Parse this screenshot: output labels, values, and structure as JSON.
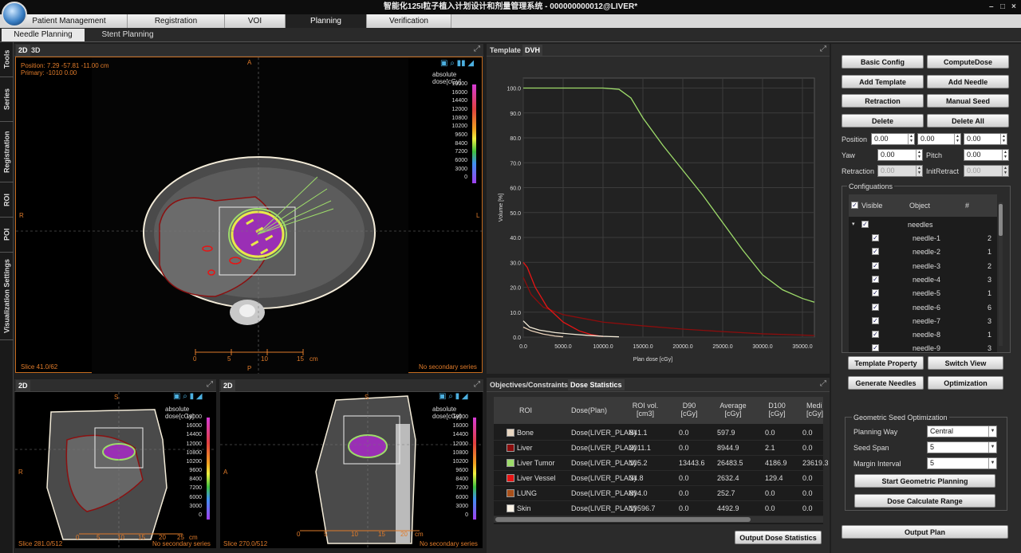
{
  "title": "智能化125I粒子植入计划设计和剂量管理系统 - 000000000012@LIVER*",
  "window_controls": [
    "–",
    "□",
    "×"
  ],
  "main_tabs": [
    "Patient Management",
    "Registration",
    "VOI",
    "Planning",
    "Verification"
  ],
  "sub_tabs": [
    "Needle Planning",
    "Stent Planning"
  ],
  "side_tabs": [
    "Tools",
    "Series",
    "Registration",
    "ROI",
    "POI",
    "Visualization Settings"
  ],
  "viewer_main": {
    "tabs": [
      "2D",
      "3D"
    ],
    "position": "Position: 7.29 -57.81 -11.00 cm",
    "primary": "Primary: -1010  0.00",
    "dose_label": "absolute dose[cGy]",
    "orient_top": "A",
    "orient_bottom": "P",
    "orient_left": "R",
    "orient_right": "L",
    "slice": "Slice 41.0/62",
    "secondary": "No secondary series",
    "ruler_ticks": [
      "0",
      "5",
      "10",
      "15"
    ],
    "ruler_unit": "cm"
  },
  "colorbar_values": [
    "18000",
    "16000",
    "14400",
    "12000",
    "10800",
    "10200",
    "9600",
    "8400",
    "7200",
    "6000",
    "3000",
    "0"
  ],
  "viewer_coronal": {
    "tab": "2D",
    "dose_label": "absolute dose[cGy]",
    "orient_top": "S",
    "orient_left": "R",
    "slice": "Slice 281.0/512",
    "secondary": "No secondary series",
    "ruler_ticks": [
      "0",
      "5",
      "10",
      "15",
      "20",
      "25"
    ],
    "ruler_unit": "cm"
  },
  "viewer_sagittal": {
    "tab": "2D",
    "dose_label": "absolute dose[cGy]",
    "orient_top": "S",
    "orient_left": "A",
    "slice": "Slice 270.0/512",
    "secondary": "No secondary series",
    "ruler_ticks": [
      "0",
      "5",
      "10",
      "15",
      "20"
    ],
    "ruler_unit": "cm"
  },
  "dvh_tabs": [
    "Template",
    "DVH"
  ],
  "chart_data": {
    "type": "line",
    "title": "",
    "xlabel": "Plan dose [cGy]",
    "ylabel": "Volume [%]",
    "xlim": [
      0,
      36500
    ],
    "ylim": [
      0,
      104
    ],
    "xticks": [
      "0.0",
      "5000.0",
      "10000.0",
      "15000.0",
      "20000.0",
      "25000.0",
      "30000.0",
      "35000.0"
    ],
    "yticks": [
      "0.0",
      "10.0",
      "20.0",
      "30.0",
      "40.0",
      "50.0",
      "60.0",
      "70.0",
      "80.0",
      "90.0",
      "100.0"
    ],
    "grid": true,
    "series": [
      {
        "name": "Liver Tumor",
        "color": "#9edc6a",
        "x": [
          0,
          5000,
          10000,
          12000,
          13500,
          15000,
          17500,
          20000,
          22500,
          25000,
          27500,
          30000,
          32500,
          35000,
          36500
        ],
        "y": [
          100,
          100,
          100,
          99.5,
          96,
          88,
          77,
          67,
          57,
          46,
          35,
          25,
          19,
          15.5,
          14
        ]
      },
      {
        "name": "Liver",
        "color": "#8b0d0d",
        "x": [
          0,
          1000,
          2500,
          5000,
          7500,
          10000,
          15000,
          20000,
          25000,
          30000,
          35000,
          36500
        ],
        "y": [
          24,
          17,
          12,
          9,
          7.5,
          6,
          4.5,
          3.2,
          2.2,
          1.3,
          0.8,
          0.6
        ]
      },
      {
        "name": "Liver Vessel",
        "color": "#e81414",
        "x": [
          0,
          500,
          1500,
          3000,
          5000,
          7000,
          8500,
          10000
        ],
        "y": [
          30,
          28,
          20,
          12,
          6,
          2.5,
          1,
          0.2
        ]
      },
      {
        "name": "Skin",
        "color": "#f3ebd8",
        "x": [
          0,
          800,
          2000,
          4000,
          6000,
          8000,
          10000,
          12000
        ],
        "y": [
          6.5,
          4,
          2.8,
          1.8,
          1.2,
          0.7,
          0.3,
          0.1
        ]
      },
      {
        "name": "Bone",
        "color": "#e8d0b8",
        "x": [
          0,
          1000,
          2500,
          4000,
          5000
        ],
        "y": [
          4,
          2.5,
          1.2,
          0.4,
          0.1
        ]
      }
    ]
  },
  "stats_tabs": [
    "Objectives/Constraints",
    "Dose Statistics"
  ],
  "stats_headers": [
    "ROI",
    "Dose(Plan)",
    "ROI vol. [cm3]",
    "D90 [cGy]",
    "Average [cGy]",
    "D100 [cGy]",
    "Medi [cGy]"
  ],
  "stats_rows": [
    {
      "color": "#e8d6c0",
      "roi": "Bone",
      "dose": "Dose(LIVER_PLAN)",
      "vol": "841.1",
      "d90": "0.0",
      "avg": "597.9",
      "d100": "0.0",
      "med": "0.0"
    },
    {
      "color": "#8b0d0d",
      "roi": "Liver",
      "dose": "Dose(LIVER_PLAN)",
      "vol": "2011.1",
      "d90": "0.0",
      "avg": "8944.9",
      "d100": "2.1",
      "med": "0.0"
    },
    {
      "color": "#9edc6a",
      "roi": "Liver Tumor",
      "dose": "Dose(LIVER_PLAN)",
      "vol": "105.2",
      "d90": "13443.6",
      "avg": "26483.5",
      "d100": "4186.9",
      "med": "23619.3"
    },
    {
      "color": "#e81414",
      "roi": "Liver Vessel",
      "dose": "Dose(LIVER_PLAN)",
      "vol": "34.8",
      "d90": "0.0",
      "avg": "2632.4",
      "d100": "129.4",
      "med": "0.0"
    },
    {
      "color": "#a9501a",
      "roi": "LUNG",
      "dose": "Dose(LIVER_PLAN)",
      "vol": "894.0",
      "d90": "0.0",
      "avg": "252.7",
      "d100": "0.0",
      "med": "0.0"
    },
    {
      "color": "#fbf3e6",
      "roi": "Skin",
      "dose": "Dose(LIVER_PLAN)",
      "vol": "19596.7",
      "d90": "0.0",
      "avg": "4492.9",
      "d100": "0.0",
      "med": "0.0"
    }
  ],
  "output_dose_stats": "Output Dose Statistics",
  "right": {
    "buttons": [
      "Basic Config",
      "ComputeDose",
      "Add Template",
      "Add Needle",
      "Retraction",
      "Manual Seed",
      "Delete",
      "Delete All"
    ],
    "position_label": "Position",
    "position_vals": [
      "0.00",
      "0.00",
      "0.00"
    ],
    "yaw_label": "Yaw",
    "yaw_val": "0.00",
    "pitch_label": "Pitch",
    "pitch_val": "0.00",
    "retraction_label": "Retraction",
    "retraction_val": "0.00",
    "initretract_label": "InitRetract",
    "initretract_val": "0.00",
    "config_title": "Configuations",
    "config_headers": [
      "Visible",
      "Object",
      "#"
    ],
    "group_name": "needles",
    "needles": [
      {
        "name": "needle-1",
        "count": "2"
      },
      {
        "name": "needle-2",
        "count": "1"
      },
      {
        "name": "needle-3",
        "count": "2"
      },
      {
        "name": "needle-4",
        "count": "3"
      },
      {
        "name": "needle-5",
        "count": "1"
      },
      {
        "name": "needle-6",
        "count": "6"
      },
      {
        "name": "needle-7",
        "count": "3"
      },
      {
        "name": "needle-8",
        "count": "1"
      },
      {
        "name": "needle-9",
        "count": "3"
      }
    ],
    "buttons2": [
      "Template Property",
      "Switch View",
      "Generate Needles",
      "Optimization"
    ],
    "geo_title": "Geometric Seed Optimization",
    "planning_way_label": "Planning Way",
    "planning_way": "Central",
    "seed_span_label": "Seed Span",
    "seed_span": "5",
    "margin_label": "Margin Interval",
    "margin": "5",
    "start_geo": "Start Geometric Planning",
    "dose_calc": "Dose Calculate Range",
    "output_plan": "Output Plan"
  }
}
